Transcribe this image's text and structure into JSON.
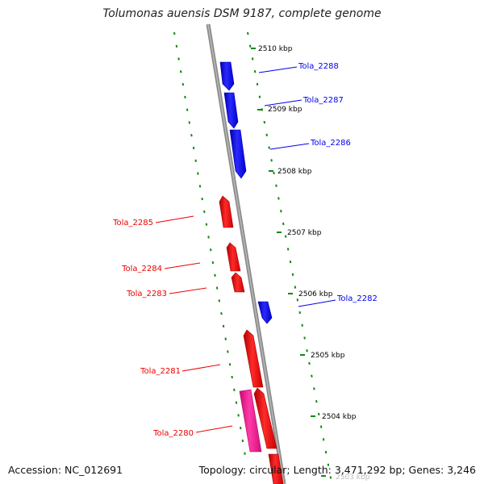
{
  "title": "Tolumonas auensis DSM 9187, complete genome",
  "accession_text": "Accession: NC_012691",
  "summary_text": "Topology: circular; Length: 3,471,292 bp; Genes: 3,246",
  "colors": {
    "backbone": "#8c8c8c",
    "forward_gene": "#0000ee",
    "reverse_gene": "#ee0000",
    "other_feature": "#ff1493",
    "gc_ticks": "#118811"
  },
  "ruler": [
    {
      "label": "2510 kbp"
    },
    {
      "label": "2509 kbp"
    },
    {
      "label": "2508 kbp"
    },
    {
      "label": "2507 kbp"
    },
    {
      "label": "2506 kbp"
    },
    {
      "label": "2505 kbp"
    },
    {
      "label": "2504 kbp"
    },
    {
      "label": "2503 kbp"
    }
  ],
  "genes": [
    {
      "label": "Tola_2288",
      "strand": "forward",
      "color": "#0000ee"
    },
    {
      "label": "Tola_2287",
      "strand": "forward",
      "color": "#0000ee"
    },
    {
      "label": "Tola_2286",
      "strand": "forward",
      "color": "#0000ee"
    },
    {
      "label": "Tola_2285",
      "strand": "reverse",
      "color": "#ee0000"
    },
    {
      "label": "Tola_2284",
      "strand": "reverse",
      "color": "#ee0000"
    },
    {
      "label": "Tola_2283",
      "strand": "reverse",
      "color": "#ee0000"
    },
    {
      "label": "Tola_2282",
      "strand": "forward",
      "color": "#0000ee"
    },
    {
      "label": "Tola_2281",
      "strand": "reverse",
      "color": "#ee0000"
    },
    {
      "label": "Tola_2280",
      "strand": "reverse",
      "color": "#ee0000"
    }
  ]
}
